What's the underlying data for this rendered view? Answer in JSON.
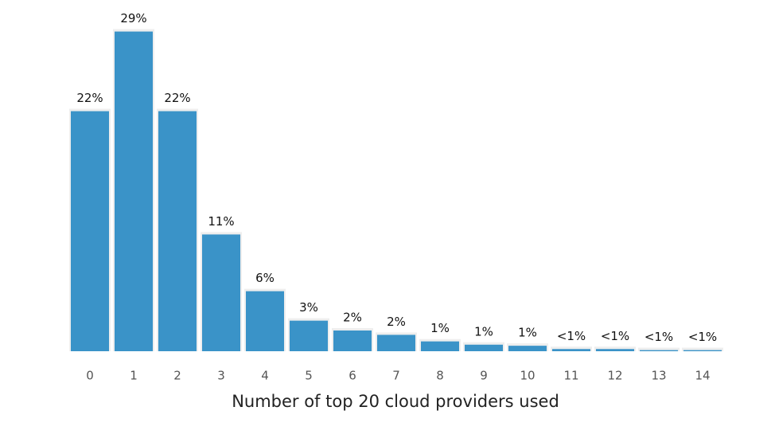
{
  "chart_data": {
    "type": "bar",
    "xlabel": "Number of top 20 cloud providers used",
    "categories": [
      "0",
      "1",
      "2",
      "3",
      "4",
      "5",
      "6",
      "7",
      "8",
      "9",
      "10",
      "11",
      "12",
      "13",
      "14"
    ],
    "values": [
      22,
      29.3,
      22,
      10.7,
      5.5,
      2.8,
      1.9,
      1.5,
      0.9,
      0.6,
      0.5,
      0.2,
      0.2,
      0.1,
      0.1
    ],
    "value_labels": [
      "22%",
      "29%",
      "22%",
      "11%",
      "6%",
      "3%",
      "2%",
      "2%",
      "1%",
      "1%",
      "1%",
      "<1%",
      "<1%",
      "<1%",
      "<1%"
    ],
    "color": "#3a93c8",
    "ylim": [
      0,
      30
    ]
  }
}
